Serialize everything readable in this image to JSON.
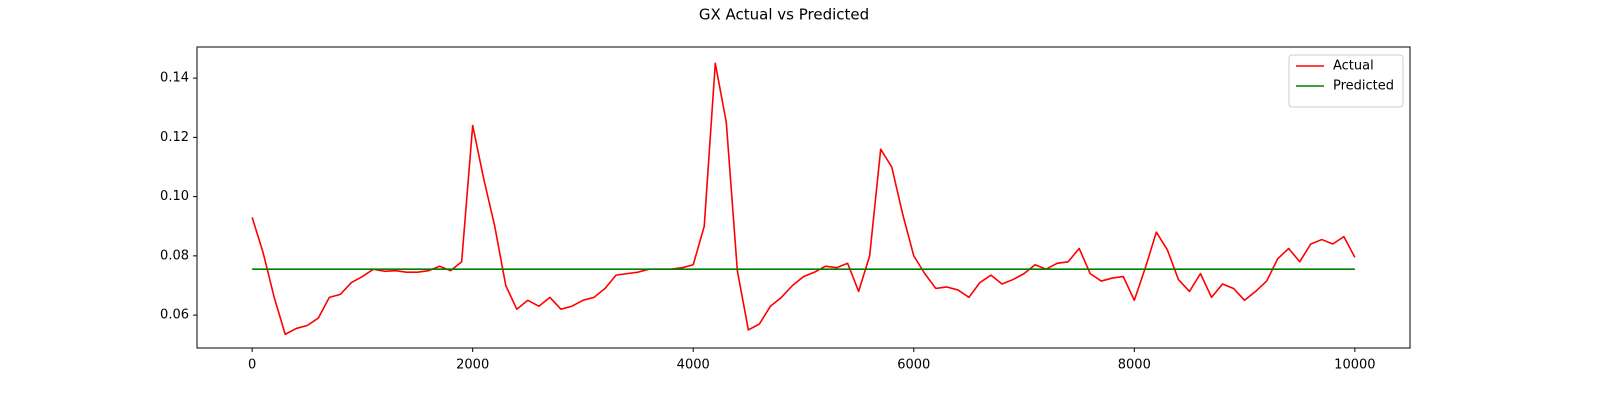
{
  "chart_data": {
    "type": "line",
    "title": "GX Actual vs Predicted",
    "x": [
      0,
      100,
      200,
      300,
      400,
      500,
      600,
      700,
      800,
      900,
      1000,
      1100,
      1200,
      1300,
      1400,
      1500,
      1600,
      1700,
      1800,
      1900,
      2000,
      2100,
      2200,
      2300,
      2400,
      2500,
      2600,
      2700,
      2800,
      2900,
      3000,
      3100,
      3200,
      3300,
      3400,
      3500,
      3600,
      3700,
      3800,
      3900,
      4000,
      4100,
      4200,
      4300,
      4400,
      4500,
      4600,
      4700,
      4800,
      4900,
      5000,
      5100,
      5200,
      5300,
      5400,
      5500,
      5600,
      5700,
      5800,
      5900,
      6000,
      6100,
      6200,
      6300,
      6400,
      6500,
      6600,
      6700,
      6800,
      6900,
      7000,
      7100,
      7200,
      7300,
      7400,
      7500,
      7600,
      7700,
      7800,
      7900,
      8000,
      8100,
      8200,
      8300,
      8400,
      8500,
      8600,
      8700,
      8800,
      8900,
      9000,
      9100,
      9200,
      9300,
      9400,
      9500,
      9600,
      9700,
      9800,
      9900,
      10000
    ],
    "series": [
      {
        "name": "Actual",
        "color": "#ff0000",
        "values": [
          0.093,
          0.081,
          0.066,
          0.0535,
          0.0555,
          0.0565,
          0.059,
          0.066,
          0.067,
          0.071,
          0.073,
          0.0755,
          0.0748,
          0.075,
          0.0745,
          0.0745,
          0.075,
          0.0765,
          0.075,
          0.078,
          0.124,
          0.106,
          0.09,
          0.07,
          0.062,
          0.065,
          0.063,
          0.066,
          0.062,
          0.063,
          0.065,
          0.066,
          0.069,
          0.0735,
          0.074,
          0.0745,
          0.0755,
          0.0755,
          0.0755,
          0.076,
          0.077,
          0.09,
          0.145,
          0.125,
          0.075,
          0.055,
          0.057,
          0.063,
          0.066,
          0.07,
          0.073,
          0.0745,
          0.0765,
          0.076,
          0.0775,
          0.068,
          0.08,
          0.116,
          0.11,
          0.094,
          0.08,
          0.074,
          0.069,
          0.0695,
          0.0685,
          0.066,
          0.071,
          0.0735,
          0.0705,
          0.072,
          0.074,
          0.077,
          0.0755,
          0.0775,
          0.078,
          0.0825,
          0.074,
          0.0715,
          0.0725,
          0.073,
          0.065,
          0.076,
          0.088,
          0.082,
          0.072,
          0.068,
          0.074,
          0.066,
          0.0705,
          0.069,
          0.065,
          0.068,
          0.0715,
          0.079,
          0.0825,
          0.078,
          0.084,
          0.0855,
          0.084,
          0.0865,
          0.0795
        ]
      },
      {
        "name": "Predicted",
        "color": "#008000",
        "values": [
          0.0755,
          0.0755,
          0.0755,
          0.0755,
          0.0755,
          0.0755,
          0.0755,
          0.0755,
          0.0755,
          0.0755,
          0.0755,
          0.0755,
          0.0755,
          0.0755,
          0.0755,
          0.0755,
          0.0755,
          0.0755,
          0.0755,
          0.0755,
          0.0755,
          0.0755,
          0.0755,
          0.0755,
          0.0755,
          0.0755,
          0.0755,
          0.0755,
          0.0755,
          0.0755,
          0.0755,
          0.0755,
          0.0755,
          0.0755,
          0.0755,
          0.0755,
          0.0755,
          0.0755,
          0.0755,
          0.0755,
          0.0755,
          0.0755,
          0.0755,
          0.0755,
          0.0755,
          0.0755,
          0.0755,
          0.0755,
          0.0755,
          0.0755,
          0.0755,
          0.0755,
          0.0755,
          0.0755,
          0.0755,
          0.0755,
          0.0755,
          0.0755,
          0.0755,
          0.0755,
          0.0755,
          0.0755,
          0.0755,
          0.0755,
          0.0755,
          0.0755,
          0.0755,
          0.0755,
          0.0755,
          0.0755,
          0.0755,
          0.0755,
          0.0755,
          0.0755,
          0.0755,
          0.0755,
          0.0755,
          0.0755,
          0.0755,
          0.0755,
          0.0755,
          0.0755,
          0.0755,
          0.0755,
          0.0755,
          0.0755,
          0.0755,
          0.0755,
          0.0755,
          0.0755,
          0.0755,
          0.0755,
          0.0755,
          0.0755,
          0.0755,
          0.0755,
          0.0755,
          0.0755,
          0.0755,
          0.0755,
          0.0755
        ]
      }
    ],
    "xlim": [
      -500,
      10500
    ],
    "ylim": [
      0.0489,
      0.1505
    ],
    "xticks": [
      0,
      2000,
      4000,
      6000,
      8000,
      10000
    ],
    "yticks": [
      0.06,
      0.08,
      {
        "value": 0.1,
        "label": "0.10"
      },
      0.12,
      0.14
    ],
    "legend": "upper right",
    "grid": false
  }
}
